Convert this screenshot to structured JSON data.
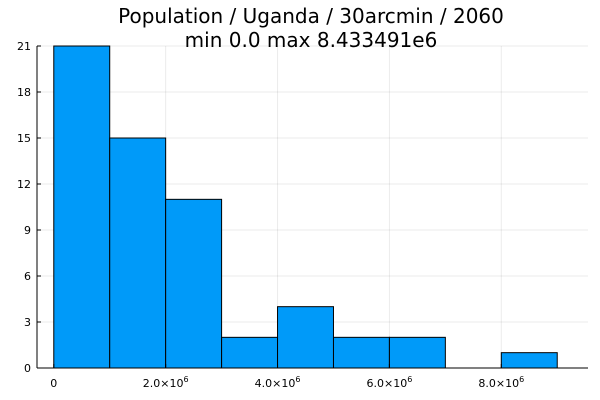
{
  "chart_data": {
    "type": "bar",
    "title_lines": [
      "Population / Uganda / 30arcmin / 2060",
      "min 0.0  max 8.433491e6"
    ],
    "xlabel": "",
    "ylabel": "",
    "bin_edges": [
      0,
      1000000,
      2000000,
      3000000,
      4000000,
      5000000,
      6000000,
      7000000,
      8000000,
      9000000
    ],
    "counts": [
      21,
      15,
      11,
      2,
      4,
      2,
      2,
      0,
      1
    ],
    "xlim": [
      -300000,
      9550000
    ],
    "ylim": [
      0,
      21
    ],
    "x_ticks": [
      {
        "value": 0,
        "mantissa": "0",
        "exponent": ""
      },
      {
        "value": 2000000,
        "mantissa": "2.0×10",
        "exponent": "6"
      },
      {
        "value": 4000000,
        "mantissa": "4.0×10",
        "exponent": "6"
      },
      {
        "value": 6000000,
        "mantissa": "6.0×10",
        "exponent": "6"
      },
      {
        "value": 8000000,
        "mantissa": "8.0×10",
        "exponent": "6"
      }
    ],
    "y_ticks": [
      0,
      3,
      6,
      9,
      12,
      15,
      18,
      21
    ],
    "bar_color": "#009af9",
    "edge_color": "#000000",
    "grid": true,
    "legend": "none"
  }
}
